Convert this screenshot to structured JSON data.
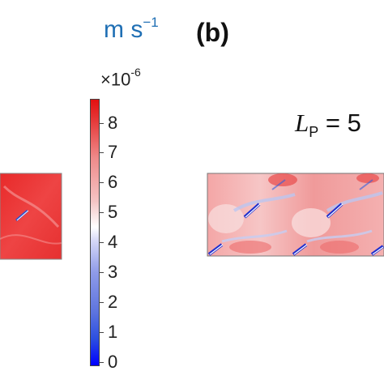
{
  "unit_label": {
    "base": "m s",
    "exp": "−1"
  },
  "panel_label": "(b)",
  "scale_factor": {
    "base": "×10",
    "exp": "-6"
  },
  "parameter": {
    "symbol": "L",
    "subscript": "P",
    "equals": "= 5"
  },
  "colorbar": {
    "ticks": [
      "8",
      "7",
      "6",
      "5",
      "4",
      "3",
      "2",
      "1",
      "0"
    ],
    "colors": {
      "max": "#e31010",
      "mid": "#ffffff",
      "min": "#0000ff"
    }
  }
}
